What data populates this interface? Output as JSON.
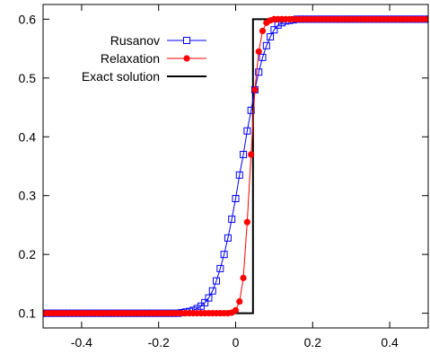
{
  "chart_data": {
    "type": "line",
    "title": "",
    "xlabel": "",
    "ylabel": "",
    "xlim": [
      -0.5,
      0.5
    ],
    "ylim": [
      0.075,
      0.625
    ],
    "xticks": [
      -0.4,
      -0.2,
      0,
      0.2,
      0.4
    ],
    "xtick_labels": [
      "-0.4",
      "-0.2",
      "0",
      "0.2",
      "0.4"
    ],
    "yticks": [
      0.1,
      0.2,
      0.3,
      0.4,
      0.5,
      0.6
    ],
    "ytick_labels": [
      "0.1",
      "0.2",
      "0.3",
      "0.4",
      "0.5",
      "0.6"
    ],
    "grid": false,
    "legend_position": "top-left",
    "series": [
      {
        "name": "Rusanov",
        "color": "#0000ff",
        "marker": "open-square",
        "x": [
          -0.5,
          -0.49,
          -0.48,
          -0.47,
          -0.46,
          -0.45,
          -0.44,
          -0.43,
          -0.42,
          -0.41,
          -0.4,
          -0.39,
          -0.38,
          -0.37,
          -0.36,
          -0.35,
          -0.34,
          -0.33,
          -0.32,
          -0.31,
          -0.3,
          -0.29,
          -0.28,
          -0.27,
          -0.26,
          -0.25,
          -0.24,
          -0.23,
          -0.22,
          -0.21,
          -0.2,
          -0.19,
          -0.18,
          -0.17,
          -0.16,
          -0.15,
          -0.14,
          -0.13,
          -0.12,
          -0.11,
          -0.1,
          -0.09,
          -0.08,
          -0.07,
          -0.06,
          -0.05,
          -0.04,
          -0.03,
          -0.02,
          -0.01,
          0,
          0.01,
          0.02,
          0.03,
          0.04,
          0.05,
          0.06,
          0.07,
          0.08,
          0.09,
          0.1,
          0.11,
          0.12,
          0.13,
          0.14,
          0.15,
          0.16,
          0.17,
          0.18,
          0.19,
          0.2,
          0.21,
          0.22,
          0.23,
          0.24,
          0.25,
          0.26,
          0.27,
          0.28,
          0.29,
          0.3,
          0.31,
          0.32,
          0.33,
          0.34,
          0.35,
          0.36,
          0.37,
          0.38,
          0.39,
          0.4,
          0.41,
          0.42,
          0.43,
          0.44,
          0.45,
          0.46,
          0.47,
          0.48,
          0.49,
          0.5
        ],
        "y": [
          0.1,
          0.1,
          0.1,
          0.1,
          0.1,
          0.1,
          0.1,
          0.1,
          0.1,
          0.1,
          0.1,
          0.1,
          0.1,
          0.1,
          0.1,
          0.1,
          0.1,
          0.1,
          0.1,
          0.1,
          0.1,
          0.1,
          0.1,
          0.1,
          0.1,
          0.1,
          0.1,
          0.1,
          0.1,
          0.1,
          0.1,
          0.1,
          0.1,
          0.1,
          0.1,
          0.1,
          0.101,
          0.102,
          0.103,
          0.105,
          0.108,
          0.112,
          0.118,
          0.126,
          0.138,
          0.155,
          0.176,
          0.2,
          0.228,
          0.26,
          0.295,
          0.335,
          0.37,
          0.41,
          0.445,
          0.48,
          0.51,
          0.535,
          0.555,
          0.57,
          0.582,
          0.59,
          0.594,
          0.597,
          0.598,
          0.599,
          0.6,
          0.6,
          0.6,
          0.6,
          0.6,
          0.6,
          0.6,
          0.6,
          0.6,
          0.6,
          0.6,
          0.6,
          0.6,
          0.6,
          0.6,
          0.6,
          0.6,
          0.6,
          0.6,
          0.6,
          0.6,
          0.6,
          0.6,
          0.6,
          0.6,
          0.6,
          0.6,
          0.6,
          0.6,
          0.6,
          0.6,
          0.6,
          0.6,
          0.6,
          0.6
        ]
      },
      {
        "name": "Relaxation",
        "color": "#ff0000",
        "marker": "filled-circle",
        "x": [
          -0.5,
          -0.49,
          -0.48,
          -0.47,
          -0.46,
          -0.45,
          -0.44,
          -0.43,
          -0.42,
          -0.41,
          -0.4,
          -0.39,
          -0.38,
          -0.37,
          -0.36,
          -0.35,
          -0.34,
          -0.33,
          -0.32,
          -0.31,
          -0.3,
          -0.29,
          -0.28,
          -0.27,
          -0.26,
          -0.25,
          -0.24,
          -0.23,
          -0.22,
          -0.21,
          -0.2,
          -0.19,
          -0.18,
          -0.17,
          -0.16,
          -0.15,
          -0.14,
          -0.13,
          -0.12,
          -0.11,
          -0.1,
          -0.09,
          -0.08,
          -0.07,
          -0.06,
          -0.05,
          -0.04,
          -0.03,
          -0.02,
          -0.01,
          0,
          0.01,
          0.02,
          0.03,
          0.04,
          0.05,
          0.06,
          0.07,
          0.08,
          0.09,
          0.1,
          0.11,
          0.12,
          0.13,
          0.14,
          0.15,
          0.16,
          0.17,
          0.18,
          0.19,
          0.2,
          0.21,
          0.22,
          0.23,
          0.24,
          0.25,
          0.26,
          0.27,
          0.28,
          0.29,
          0.3,
          0.31,
          0.32,
          0.33,
          0.34,
          0.35,
          0.36,
          0.37,
          0.38,
          0.39,
          0.4,
          0.41,
          0.42,
          0.43,
          0.44,
          0.45,
          0.46,
          0.47,
          0.48,
          0.49,
          0.5
        ],
        "y": [
          0.1,
          0.1,
          0.1,
          0.1,
          0.1,
          0.1,
          0.1,
          0.1,
          0.1,
          0.1,
          0.1,
          0.1,
          0.1,
          0.1,
          0.1,
          0.1,
          0.1,
          0.1,
          0.1,
          0.1,
          0.1,
          0.1,
          0.1,
          0.1,
          0.1,
          0.1,
          0.1,
          0.1,
          0.1,
          0.1,
          0.1,
          0.1,
          0.1,
          0.1,
          0.1,
          0.1,
          0.1,
          0.1,
          0.1,
          0.1,
          0.1,
          0.1,
          0.1,
          0.1,
          0.1,
          0.1,
          0.1,
          0.1,
          0.1,
          0.101,
          0.105,
          0.12,
          0.16,
          0.255,
          0.37,
          0.48,
          0.545,
          0.58,
          0.594,
          0.598,
          0.6,
          0.6,
          0.6,
          0.6,
          0.6,
          0.6,
          0.6,
          0.6,
          0.6,
          0.6,
          0.6,
          0.6,
          0.6,
          0.6,
          0.6,
          0.6,
          0.6,
          0.6,
          0.6,
          0.6,
          0.6,
          0.6,
          0.6,
          0.6,
          0.6,
          0.6,
          0.6,
          0.6,
          0.6,
          0.6,
          0.6,
          0.6,
          0.6,
          0.6,
          0.6,
          0.6,
          0.6,
          0.6,
          0.6,
          0.6,
          0.6
        ]
      },
      {
        "name": "Exact solution",
        "color": "#000000",
        "marker": "none",
        "x": [
          -0.5,
          0.045,
          0.045,
          0.5
        ],
        "y": [
          0.1,
          0.1,
          0.6,
          0.6
        ]
      }
    ]
  }
}
